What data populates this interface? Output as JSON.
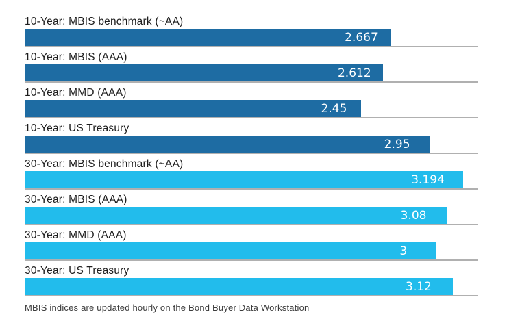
{
  "chart_data": {
    "type": "bar",
    "orientation": "horizontal",
    "categories": [
      "10-Year: MBIS benchmark (~AA)",
      "10-Year: MBIS (AAA)",
      "10-Year: MMD (AAA)",
      "10-Year: US Treasury",
      "30-Year: MBIS benchmark (~AA)",
      "30-Year: MBIS (AAA)",
      "30-Year: MMD (AAA)",
      "30-Year: US Treasury"
    ],
    "values": [
      2.667,
      2.612,
      2.45,
      2.95,
      3.194,
      3.08,
      3,
      3.12
    ],
    "xlim": [
      0,
      3.3
    ],
    "grid": false,
    "legend": "none",
    "value_label_position": "inside-end",
    "series": [
      {
        "name": "10-Year",
        "color": "#1e6ca3",
        "values": [
          2.667,
          2.612,
          2.45,
          2.95
        ]
      },
      {
        "name": "30-Year",
        "color": "#22bcec",
        "values": [
          3.194,
          3.08,
          3,
          3.12
        ]
      }
    ],
    "rows": [
      {
        "label": "10-Year: MBIS benchmark (~AA)",
        "value": 2.667,
        "value_label": "2.667",
        "group": "10-year"
      },
      {
        "label": "10-Year: MBIS (AAA)",
        "value": 2.612,
        "value_label": "2.612",
        "group": "10-year"
      },
      {
        "label": "10-Year: MMD (AAA)",
        "value": 2.45,
        "value_label": "2.45",
        "group": "10-year"
      },
      {
        "label": "10-Year: US Treasury",
        "value": 2.95,
        "value_label": "2.95",
        "group": "10-year"
      },
      {
        "label": "30-Year: MBIS benchmark (~AA)",
        "value": 3.194,
        "value_label": "3.194",
        "group": "30-year"
      },
      {
        "label": "30-Year: MBIS (AAA)",
        "value": 3.08,
        "value_label": "3.08",
        "group": "30-year"
      },
      {
        "label": "30-Year: MMD (AAA)",
        "value": 3,
        "value_label": "3",
        "group": "30-year"
      },
      {
        "label": "30-Year: US Treasury",
        "value": 3.12,
        "value_label": "3.12",
        "group": "30-year"
      }
    ],
    "footnote": "MBIS indices are updated hourly on the Bond Buyer Data Workstation",
    "colors": {
      "ten_year_bar": "#1e6ca3",
      "thirty_year_bar": "#22bcec",
      "baseline": "#b0b0b0",
      "label_text": "#1d1d1d",
      "value_text": "#ffffff",
      "footnote_text": "#3c3c3c",
      "background": "#ffffff"
    }
  }
}
